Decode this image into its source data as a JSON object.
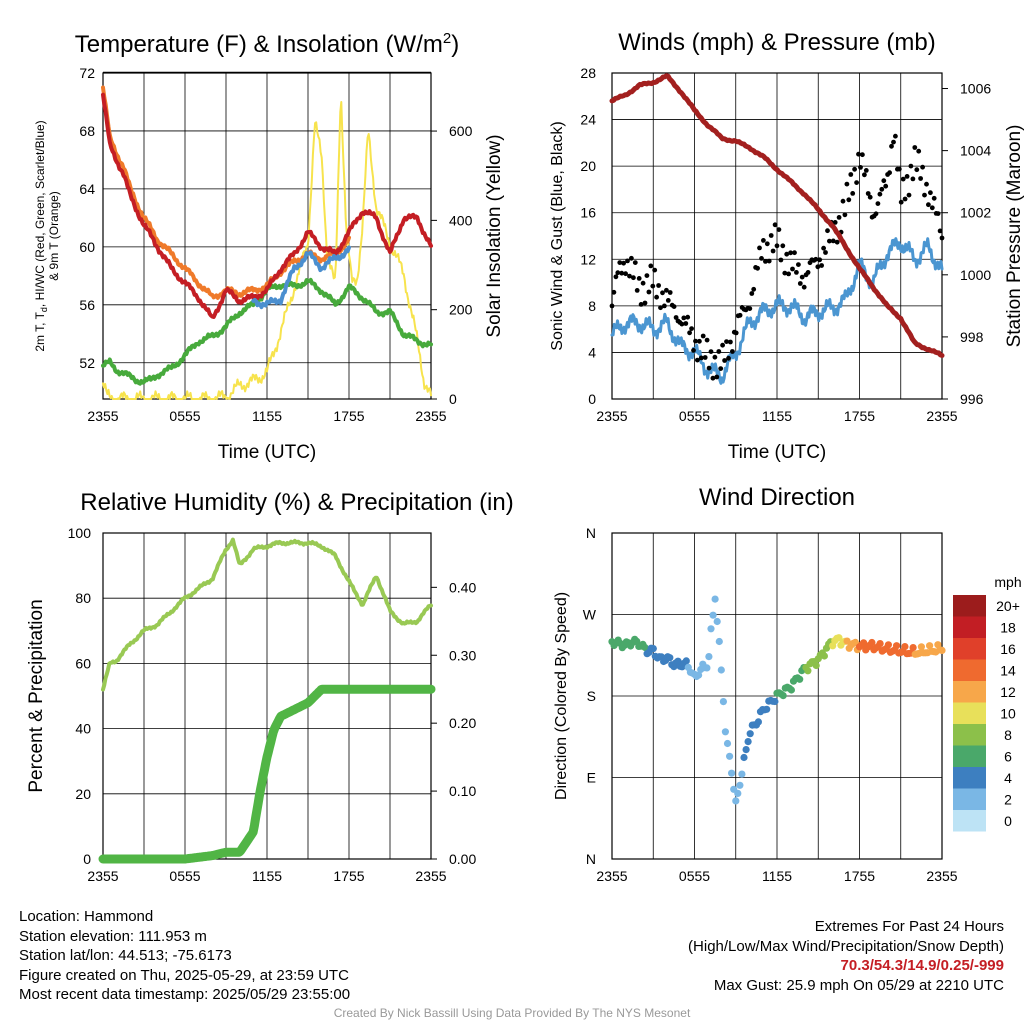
{
  "colors": {
    "temp": "#c41e24",
    "hiwc": "#c41e24",
    "dewpoint": "#47aa3c",
    "wc_blue": "#4b8fcf",
    "temp9m": "#ef7a2a",
    "insolation": "#f7e34d",
    "wind": "#4b96d1",
    "gust": "#000000",
    "pressure": "#a3201f",
    "rh": "#99c954",
    "precip": "#51b545"
  },
  "chart_data": [
    {
      "id": "temp",
      "type": "line",
      "title": "Temperature (F) & Insolation (W/m",
      "title_sup": "2",
      "title_close": ")",
      "ylabel_lines": [
        "2m T, T",
        "d",
        ", HI/WC (Red, Green, Scarlet/Blue)",
        "& 9m T (Orange)"
      ],
      "ylabel2": "Solar Insolation (Yellow)",
      "xlabel": "Time (UTC)",
      "xticks": [
        "2355",
        "0555",
        "1155",
        "1755",
        "2355"
      ],
      "yticks_left": [
        "52",
        "56",
        "60",
        "64",
        "68",
        "72"
      ],
      "yticks_right": [
        "0",
        "200",
        "400",
        "600"
      ],
      "ylim": [
        49.5,
        72
      ],
      "y2lim": [
        0,
        730
      ],
      "series": [
        {
          "name": "2m T",
          "color_key": "temp",
          "x": [
            0,
            0.5,
            1,
            1.5,
            2,
            3,
            4,
            5,
            6,
            7,
            8,
            9,
            10,
            11,
            12,
            13,
            14,
            15,
            16,
            17,
            18,
            19,
            20,
            21,
            22,
            23,
            24
          ],
          "y": [
            70.5,
            67.0,
            66.0,
            65.0,
            63.5,
            61.5,
            60.0,
            58.5,
            57.5,
            56.5,
            55.0,
            57.0,
            56.3,
            56.5,
            57.0,
            58.5,
            59.5,
            61.0,
            60.0,
            59.5,
            61.0,
            62.5,
            62.0,
            59.5,
            62.0,
            62.0,
            60.0
          ]
        },
        {
          "name": "9m T",
          "color_key": "temp9m",
          "x": [
            0,
            0.5,
            1,
            1.5,
            2,
            3,
            4,
            5,
            6,
            7,
            8,
            9,
            10,
            11,
            12,
            13,
            14,
            15,
            16,
            17,
            18
          ],
          "y": [
            71.0,
            67.5,
            66.5,
            65.5,
            64.0,
            62.0,
            60.5,
            59.5,
            58.5,
            57.5,
            56.5,
            57.0,
            56.8,
            57.0,
            57.3,
            58.3,
            59.0,
            59.5,
            59.2,
            59.5,
            60.5
          ]
        },
        {
          "name": "Td",
          "color_key": "dewpoint",
          "x": [
            0,
            0.5,
            1,
            1.5,
            2,
            2.5,
            3,
            3.5,
            4,
            5,
            6,
            7,
            8,
            9,
            10,
            11,
            12,
            13,
            14,
            15,
            16,
            17,
            18,
            19,
            20,
            21,
            22,
            23,
            24
          ],
          "y": [
            51.8,
            52.0,
            51.5,
            51.3,
            51.0,
            50.8,
            50.7,
            50.8,
            51.2,
            51.6,
            52.5,
            53.5,
            53.8,
            54.5,
            55.5,
            56.0,
            57.0,
            57.4,
            57.3,
            57.6,
            57.0,
            56.0,
            57.2,
            56.5,
            55.5,
            55.5,
            54.0,
            53.5,
            53.2
          ]
        },
        {
          "name": "HI/WC",
          "color_key": "wc_blue",
          "x": [
            11,
            12,
            13,
            14,
            15,
            16,
            17,
            18
          ],
          "y": [
            56.3,
            56.0,
            56.4,
            58.5,
            59.5,
            58.6,
            59.2,
            59.8
          ]
        },
        {
          "name": "Solar Insolation",
          "color_key": "insolation",
          "axis": "right",
          "x": [
            0,
            0.3,
            1,
            2,
            4,
            6,
            8,
            9,
            10,
            11,
            12,
            13,
            14,
            15,
            15.5,
            16,
            16.4,
            17,
            17.4,
            17.8,
            18.2,
            18.6,
            19,
            19.4,
            20,
            21,
            22,
            23,
            23.5,
            24
          ],
          "y": [
            35,
            5,
            0,
            0,
            0,
            0,
            0,
            5,
            30,
            40,
            60,
            150,
            250,
            350,
            620,
            540,
            330,
            250,
            700,
            380,
            260,
            270,
            390,
            600,
            430,
            350,
            280,
            130,
            40,
            5
          ]
        }
      ]
    },
    {
      "id": "wind",
      "type": "line",
      "title": "Winds (mph) & Pressure (mb)",
      "ylabel": "Sonic Wind & Gust (Blue, Black)",
      "ylabel2": "Station Pressure (Maroon)",
      "xlabel": "Time (UTC)",
      "xticks": [
        "2355",
        "0555",
        "1155",
        "1755",
        "2355"
      ],
      "yticks_left": [
        "0",
        "4",
        "8",
        "12",
        "16",
        "20",
        "24",
        "28"
      ],
      "yticks_right": [
        "996",
        "998",
        "1000",
        "1002",
        "1004",
        "1006"
      ],
      "ylim": [
        0,
        28
      ],
      "y2lim": [
        996,
        1006.5
      ],
      "series": [
        {
          "name": "Sonic Wind",
          "color_key": "wind",
          "x": [
            0,
            1,
            2,
            3,
            4,
            5,
            6,
            7,
            8,
            9,
            10,
            11,
            12,
            13,
            14,
            15,
            16,
            17,
            18,
            19,
            20,
            21,
            22,
            23,
            24
          ],
          "y": [
            5.5,
            6.5,
            6.5,
            6.0,
            6.5,
            4.5,
            4.0,
            2.5,
            2.0,
            4.0,
            6.5,
            7.5,
            8.0,
            8.0,
            7.0,
            7.5,
            7.8,
            8.5,
            11.5,
            10.0,
            12.5,
            13.5,
            12.0,
            13.0,
            11.0
          ]
        },
        {
          "name": "Gust",
          "color_key": "gust",
          "x": [
            0,
            0.5,
            1,
            2,
            3,
            4,
            5,
            6,
            7,
            8,
            9,
            10,
            11,
            12,
            13,
            14,
            15,
            16,
            17,
            18,
            19,
            20,
            20.5,
            21,
            22,
            23,
            24
          ],
          "y": [
            8.0,
            11.0,
            12.0,
            9.5,
            10.0,
            8.5,
            7.0,
            5.0,
            3.5,
            3.0,
            6.0,
            8.5,
            13.0,
            13.5,
            11.5,
            10.5,
            12.0,
            14.0,
            16.5,
            21.0,
            16.0,
            18.5,
            23.5,
            17.0,
            20.5,
            18.0,
            14.0
          ]
        },
        {
          "name": "Station Pressure",
          "color_key": "pressure",
          "axis": "right",
          "x": [
            0,
            1,
            2,
            3,
            4,
            5,
            6,
            7,
            8,
            9,
            10,
            11,
            12,
            13,
            14,
            15,
            16,
            17,
            18,
            19,
            20,
            21,
            22,
            23,
            24
          ],
          "y": [
            1005.6,
            1005.8,
            1006.1,
            1006.2,
            1006.4,
            1005.9,
            1005.3,
            1004.8,
            1004.4,
            1004.3,
            1004.1,
            1003.8,
            1003.4,
            1003.0,
            1002.6,
            1002.1,
            1001.6,
            1000.9,
            1000.2,
            999.6,
            999.0,
            998.6,
            997.8,
            997.6,
            997.4
          ]
        }
      ]
    },
    {
      "id": "rh",
      "type": "line",
      "title": "Relative Humidity (%) & Precipitation (in)",
      "ylabel": "Percent & Precipitation",
      "xticks": [
        "2355",
        "0555",
        "1155",
        "1755",
        "2355"
      ],
      "yticks_left": [
        "0",
        "20",
        "40",
        "60",
        "80",
        "100"
      ],
      "yticks_right": [
        "0.00",
        "0.10",
        "0.20",
        "0.30",
        "0.40"
      ],
      "ylim": [
        0,
        100
      ],
      "y2lim": [
        0,
        0.48
      ],
      "series": [
        {
          "name": "RH",
          "color_key": "rh",
          "x": [
            0,
            0.5,
            1,
            2,
            3,
            4,
            5,
            6,
            7,
            8,
            9,
            9.5,
            10,
            11,
            12,
            13,
            14,
            15,
            16,
            17,
            18,
            19,
            20,
            21,
            22,
            23,
            24
          ],
          "y": [
            52,
            60,
            61,
            66,
            70,
            72,
            76,
            80,
            83,
            86,
            95,
            98,
            90,
            95,
            96,
            97,
            97,
            97,
            96,
            93,
            85,
            78,
            87,
            76,
            72,
            73,
            78
          ]
        },
        {
          "name": "Precipitation",
          "color_key": "precip",
          "axis": "right",
          "x": [
            0,
            6,
            8,
            9,
            10,
            11,
            11.5,
            12,
            12.5,
            13,
            14,
            15,
            16,
            17,
            18,
            20,
            22,
            24
          ],
          "y": [
            0,
            0,
            0.005,
            0.01,
            0.01,
            0.04,
            0.1,
            0.15,
            0.19,
            0.21,
            0.22,
            0.23,
            0.25,
            0.25,
            0.25,
            0.25,
            0.25,
            0.25
          ]
        }
      ]
    },
    {
      "id": "direction",
      "type": "scatter",
      "title": "Wind Direction",
      "ylabel": "Direction (Colored By Speed)",
      "xticks": [
        "2355",
        "0555",
        "1155",
        "1755",
        "2355"
      ],
      "yticks_left": [
        "N",
        "E",
        "S",
        "W",
        "N"
      ],
      "ylim": [
        0,
        360
      ],
      "series": [
        {
          "name": "Direction",
          "x": [
            0,
            0.5,
            1,
            1.5,
            2,
            2.5,
            3,
            3.5,
            4,
            4.5,
            5,
            5.5,
            6,
            6.5,
            7,
            7.2,
            7.5,
            8,
            8.3,
            8.6,
            9,
            9.5,
            10,
            10.5,
            11,
            12,
            13,
            14,
            15,
            15.5,
            16,
            16.5,
            17,
            18,
            19,
            20,
            21,
            22,
            23,
            24
          ],
          "y": [
            240,
            238,
            236,
            240,
            238,
            230,
            230,
            220,
            222,
            215,
            215,
            215,
            200,
            210,
            215,
            250,
            290,
            200,
            130,
            110,
            60,
            100,
            140,
            150,
            165,
            180,
            190,
            210,
            220,
            230,
            240,
            242,
            238,
            235,
            235,
            232,
            230,
            228,
            230,
            232
          ],
          "speed": [
            6,
            6,
            6,
            6,
            5,
            5,
            4,
            4,
            4,
            4,
            3,
            3,
            2,
            2,
            1,
            1,
            1,
            2,
            3,
            2,
            2,
            3,
            3,
            4,
            4,
            5,
            6,
            7,
            8,
            8,
            9,
            10,
            11,
            13,
            14,
            15,
            14,
            13,
            12,
            11
          ]
        }
      ]
    }
  ],
  "colorbar": {
    "unit": "mph",
    "labels": [
      "20+",
      "18",
      "16",
      "14",
      "12",
      "10",
      "8",
      "6",
      "4",
      "2",
      "0"
    ],
    "colors": [
      "#9c1c1c",
      "#c21e24",
      "#e0402a",
      "#ef6a2f",
      "#f7a74a",
      "#e8e05a",
      "#8cc04a",
      "#4aa86a",
      "#3d7fc0",
      "#7ab7e5",
      "#bde3f5"
    ]
  },
  "meta": {
    "location": "Location: Hammond",
    "elevation": "Station elevation: 111.953 m",
    "latlon": "Station lat/lon: 44.513; -75.6173",
    "created": "Figure created on Thu, 2025-05-29, at 23:59 UTC",
    "recent": "Most recent data timestamp: 2025/05/29 23:55:00"
  },
  "extremes": {
    "title": "Extremes For Past 24 Hours",
    "subtitle": "(High/Low/Max Wind/Precipitation/Snow Depth)",
    "values": "70.3/54.3/14.9/0.25/-999",
    "gust": "Max Gust: 25.9 mph On 05/29 at 2210 UTC"
  },
  "credit": "Created By Nick Bassill Using Data Provided By The NYS Mesonet"
}
